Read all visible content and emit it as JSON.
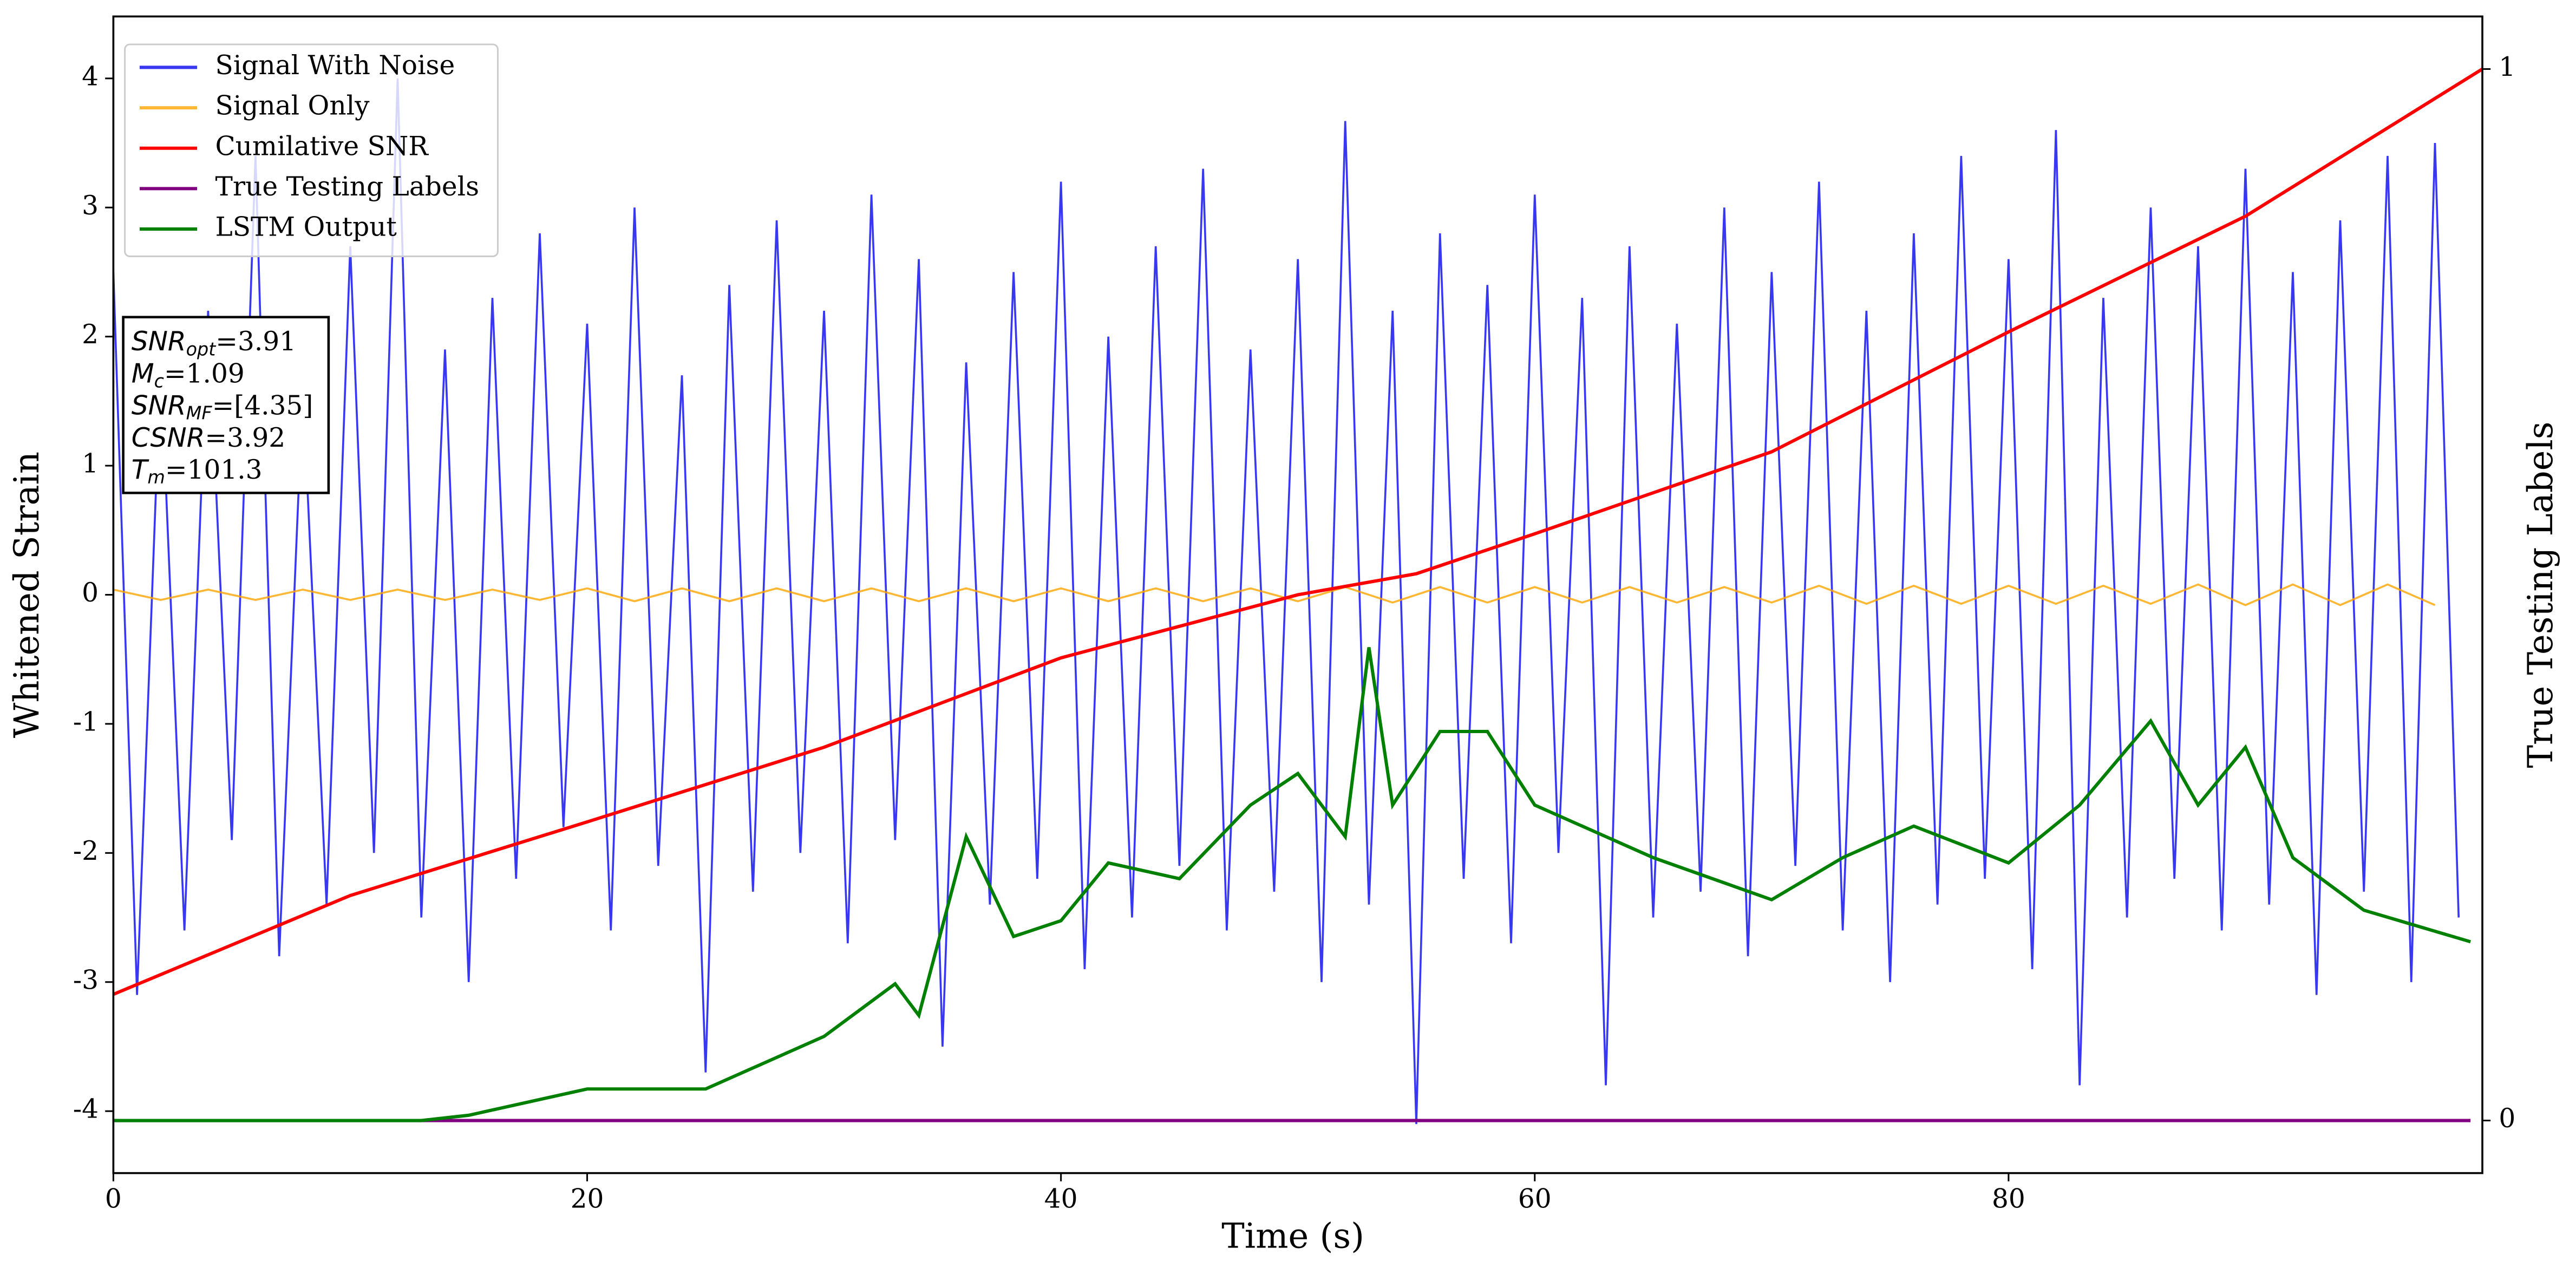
{
  "chart_data": {
    "type": "line",
    "xlabel": "Time (s)",
    "ylabel": "Whitened Strain",
    "y2label": "True Testing Labels",
    "xlim": [
      0,
      100
    ],
    "ylim": [
      -4.48,
      4.48
    ],
    "y2lim": [
      -0.05,
      1.05
    ],
    "xticks": [
      0,
      20,
      40,
      60,
      80
    ],
    "yticks": [
      -4,
      -3,
      -2,
      -1,
      0,
      1,
      2,
      3,
      4
    ],
    "y2ticks": [
      0,
      1
    ],
    "legend": "upper left",
    "annotation": [
      {
        "main": "SNR",
        "sub": "opt",
        "text": "=3.91"
      },
      {
        "main": "M",
        "sub": "c",
        "text": "=1.09"
      },
      {
        "main": "SNR",
        "sub": "MF",
        "text": "=[4.35]"
      },
      {
        "main": "CSNR",
        "sub": null,
        "text": "=3.92"
      },
      {
        "main": "T",
        "sub": "m",
        "text": "=101.3"
      }
    ],
    "series": [
      {
        "name": "Signal With Noise",
        "color": "#2222ee",
        "opacity": 0.9,
        "axis": "y",
        "x": [
          0,
          1,
          2,
          3,
          4,
          5,
          6,
          7,
          8,
          9,
          10,
          11,
          12,
          13,
          14,
          15,
          16,
          17,
          18,
          19,
          20,
          21,
          22,
          23,
          24,
          25,
          26,
          27,
          28,
          29,
          30,
          31,
          32,
          33,
          34,
          35,
          36,
          37,
          38,
          39,
          40,
          41,
          42,
          43,
          44,
          45,
          46,
          47,
          48,
          49,
          50,
          51,
          52,
          53,
          54,
          55,
          56,
          57,
          58,
          59,
          60,
          61,
          62,
          63,
          64,
          65,
          66,
          67,
          68,
          69,
          70,
          71,
          72,
          73,
          74,
          75,
          76,
          77,
          78,
          79,
          80,
          81,
          82,
          83,
          84,
          85,
          86,
          87,
          88,
          89,
          90,
          91,
          92,
          93,
          94,
          95,
          96,
          97,
          98,
          99
        ],
        "values": [
          2.5,
          -3.1,
          1.8,
          -2.6,
          2.2,
          -1.9,
          3.4,
          -2.8,
          1.6,
          -2.4,
          2.7,
          -2.0,
          4.0,
          -2.5,
          1.9,
          -3.0,
          2.3,
          -2.2,
          2.8,
          -1.8,
          2.1,
          -2.6,
          3.0,
          -2.1,
          1.7,
          -3.7,
          2.4,
          -2.3,
          2.9,
          -2.0,
          2.2,
          -2.7,
          3.1,
          -1.9,
          2.6,
          -3.5,
          1.8,
          -2.4,
          2.5,
          -2.2,
          3.2,
          -2.9,
          2.0,
          -2.5,
          2.7,
          -2.1,
          3.3,
          -2.6,
          1.9,
          -2.3,
          2.6,
          -3.0,
          3.67,
          -2.4,
          2.2,
          -4.1,
          2.8,
          -2.2,
          2.4,
          -2.7,
          3.1,
          -2.0,
          2.3,
          -3.8,
          2.7,
          -2.5,
          2.1,
          -2.3,
          3.0,
          -2.8,
          2.5,
          -2.1,
          3.2,
          -2.6,
          2.2,
          -3.0,
          2.8,
          -2.4,
          3.4,
          -2.2,
          2.6,
          -2.9,
          3.6,
          -3.8,
          2.3,
          -2.5,
          3.0,
          -2.2,
          2.7,
          -2.6,
          3.3,
          -2.4,
          2.5,
          -3.1,
          2.9,
          -2.3,
          3.4,
          -3.0,
          3.5,
          -2.5
        ]
      },
      {
        "name": "Signal Only",
        "color": "orange",
        "opacity": 0.8,
        "axis": "y",
        "x": [
          0,
          2,
          4,
          6,
          8,
          10,
          12,
          14,
          16,
          18,
          20,
          22,
          24,
          26,
          28,
          30,
          32,
          34,
          36,
          38,
          40,
          42,
          44,
          46,
          48,
          50,
          52,
          54,
          56,
          58,
          60,
          62,
          64,
          66,
          68,
          70,
          72,
          74,
          76,
          78,
          80,
          82,
          84,
          86,
          88,
          90,
          92,
          94,
          96,
          98
        ],
        "values": [
          0.04,
          -0.04,
          0.04,
          -0.04,
          0.04,
          -0.04,
          0.04,
          -0.04,
          0.04,
          -0.04,
          0.05,
          -0.05,
          0.05,
          -0.05,
          0.05,
          -0.05,
          0.05,
          -0.05,
          0.05,
          -0.05,
          0.05,
          -0.05,
          0.05,
          -0.05,
          0.05,
          -0.05,
          0.06,
          -0.06,
          0.06,
          -0.06,
          0.06,
          -0.06,
          0.06,
          -0.06,
          0.06,
          -0.06,
          0.07,
          -0.07,
          0.07,
          -0.07,
          0.07,
          -0.07,
          0.07,
          -0.07,
          0.08,
          -0.08,
          0.08,
          -0.08,
          0.08,
          -0.08
        ]
      },
      {
        "name": "Cumilative SNR",
        "color": "red",
        "opacity": 1,
        "axis": "y2",
        "x": [
          0,
          10,
          20,
          30,
          40,
          50,
          55,
          60,
          70,
          80,
          90,
          100
        ],
        "values": [
          0.12,
          0.214,
          0.284,
          0.355,
          0.44,
          0.5,
          0.52,
          0.558,
          0.636,
          0.75,
          0.86,
          1.0
        ]
      },
      {
        "name": "True Testing Labels",
        "color": "purple",
        "opacity": 1,
        "axis": "y2",
        "x": [
          0,
          99.5
        ],
        "values": [
          0,
          0
        ]
      },
      {
        "name": "LSTM Output",
        "color": "green",
        "opacity": 1,
        "axis": "y2",
        "x": [
          0,
          13,
          15,
          20,
          25,
          28,
          30,
          33,
          34,
          36,
          38,
          40,
          42,
          45,
          48,
          50,
          52,
          53,
          54,
          56,
          58,
          60,
          62,
          65,
          70,
          73,
          76,
          80,
          83,
          86,
          88,
          90,
          92,
          95,
          99.5
        ],
        "values": [
          0,
          0,
          0.005,
          0.03,
          0.03,
          0.06,
          0.08,
          0.13,
          0.1,
          0.27,
          0.175,
          0.19,
          0.245,
          0.23,
          0.3,
          0.33,
          0.27,
          0.45,
          0.3,
          0.37,
          0.37,
          0.3,
          0.28,
          0.25,
          0.21,
          0.25,
          0.28,
          0.245,
          0.3,
          0.38,
          0.3,
          0.355,
          0.25,
          0.2,
          0.17
        ]
      }
    ]
  }
}
